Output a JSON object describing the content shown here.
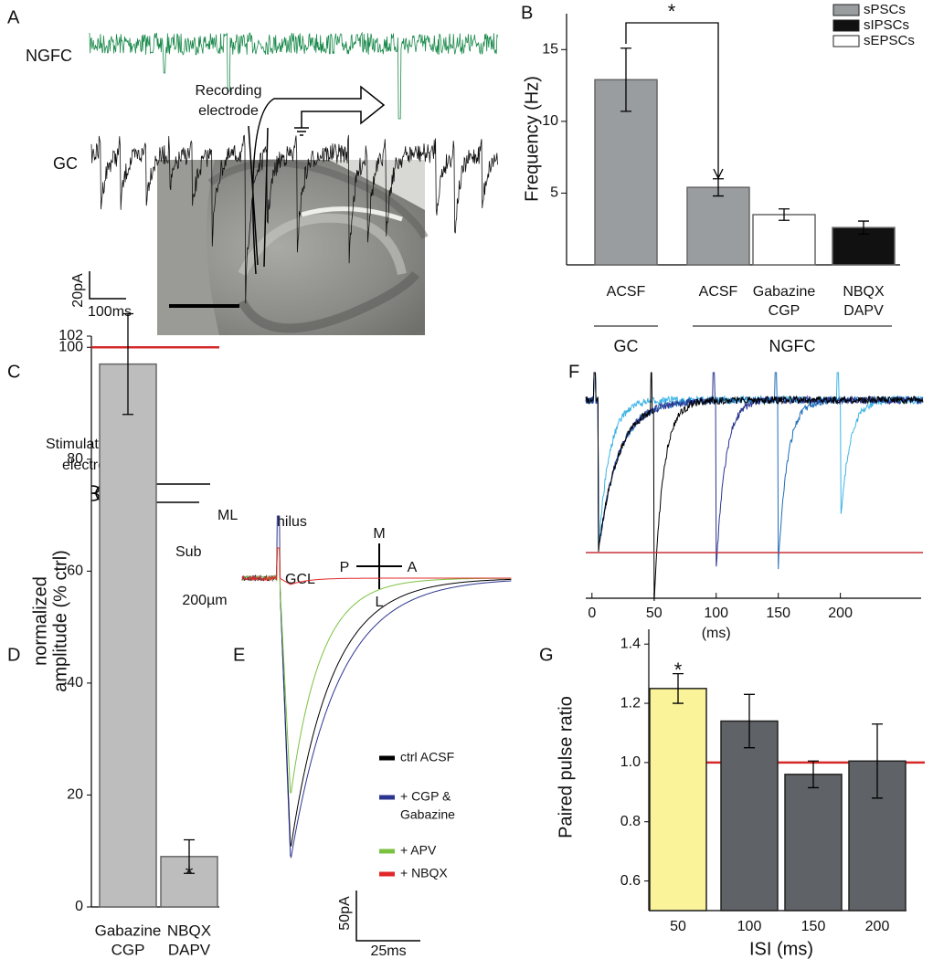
{
  "panel_labels": [
    "A",
    "B",
    "C",
    "D",
    "E",
    "F",
    "G"
  ],
  "panel_a": {
    "traces": [
      {
        "name": "NGFC",
        "color": "#1b8a4c"
      },
      {
        "name": "GC",
        "color": "#111111"
      }
    ],
    "scale_y": "20pA",
    "scale_x": "100ms"
  },
  "panel_c": {
    "recording": [
      "Recording",
      "electrode"
    ],
    "stimulating": [
      "Stimulating",
      "electrode"
    ],
    "regions": [
      "ML",
      "hilus",
      "Sub",
      "GCL"
    ],
    "compass": [
      "M",
      "P",
      "A",
      "L"
    ],
    "scale": "200µm"
  },
  "panel_e": {
    "traces": [
      {
        "name": [
          "ctrl ACSF"
        ],
        "color": "#000000"
      },
      {
        "name": [
          "+ CGP &",
          "Gabazine"
        ],
        "color": "#2b3590"
      },
      {
        "name": [
          "+ APV"
        ],
        "color": "#7cc242"
      },
      {
        "name": [
          "+ NBQX"
        ],
        "color": "#e0282a"
      }
    ],
    "scale_y": "50pA",
    "scale_x": "25ms"
  },
  "panel_f": {
    "colors": [
      "#000000",
      "#2b3590",
      "#1f6fb8",
      "#3fb4e6"
    ],
    "reference_color": "#c8323a",
    "xlabel": "(ms)",
    "xlim": [
      -5,
      265
    ],
    "xticks": [
      0,
      50,
      100,
      150,
      200
    ]
  },
  "chart_data": [
    {
      "type": "bar",
      "ylabel": "Frequency (Hz)",
      "ylim": [
        0,
        17.5
      ],
      "yticks": [
        5,
        10,
        15
      ],
      "categories": [
        [
          "ACSF"
        ],
        [
          "ACSF"
        ],
        [
          "Gabazine",
          "CGP"
        ],
        [
          "NBQX",
          "DAPV"
        ]
      ],
      "groups": [
        "GC",
        "NGFC"
      ],
      "series": [
        {
          "name": "sPSCs",
          "color": "#9a9da0",
          "values": [
            12.9,
            5.4,
            null,
            null
          ],
          "errors": [
            2.2,
            0.6,
            null,
            null
          ]
        },
        {
          "name": "sIPSCs",
          "color": "#111111",
          "values": [
            null,
            null,
            null,
            2.6
          ],
          "errors": [
            null,
            null,
            null,
            0.45
          ]
        },
        {
          "name": "sEPSCs",
          "color": "#ffffff",
          "values": [
            null,
            null,
            3.5,
            null
          ],
          "errors": [
            null,
            null,
            0.4,
            null
          ]
        }
      ],
      "annotation": "*"
    },
    {
      "type": "bar",
      "ylabel": [
        "normalized",
        "amplitude (% ctrl)"
      ],
      "ylim": [
        0,
        102
      ],
      "yticks": [
        0,
        20,
        40,
        60,
        80,
        100,
        102
      ],
      "categories": [
        [
          "Gabazine",
          "CGP"
        ],
        [
          "NBQX",
          "DAPV"
        ]
      ],
      "color": "#bdbdbd",
      "values": [
        97,
        9
      ],
      "errors": [
        9,
        3
      ],
      "reference": 100,
      "reference_color": "#d42a2a",
      "annotation": "*"
    },
    {
      "type": "bar",
      "ylabel": "Paired pulse ratio",
      "xlabel": "ISI (ms)",
      "ylim": [
        0.5,
        1.45
      ],
      "yticks": [
        0.6,
        0.8,
        {
          "value": 1,
          "label": "1.0"
        },
        1.2,
        1.4
      ],
      "categories": [
        [
          "50"
        ],
        [
          "100"
        ],
        [
          "150"
        ],
        [
          "200"
        ]
      ],
      "colors": [
        "#fbf39a",
        "#5f6266",
        "#5f6266",
        "#5f6266"
      ],
      "values": [
        1.25,
        1.14,
        0.96,
        1.005
      ],
      "errors": [
        0.05,
        0.09,
        0.045,
        0.125
      ],
      "reference": 1,
      "reference_color": "#d42a2a",
      "annotation": "*"
    }
  ]
}
